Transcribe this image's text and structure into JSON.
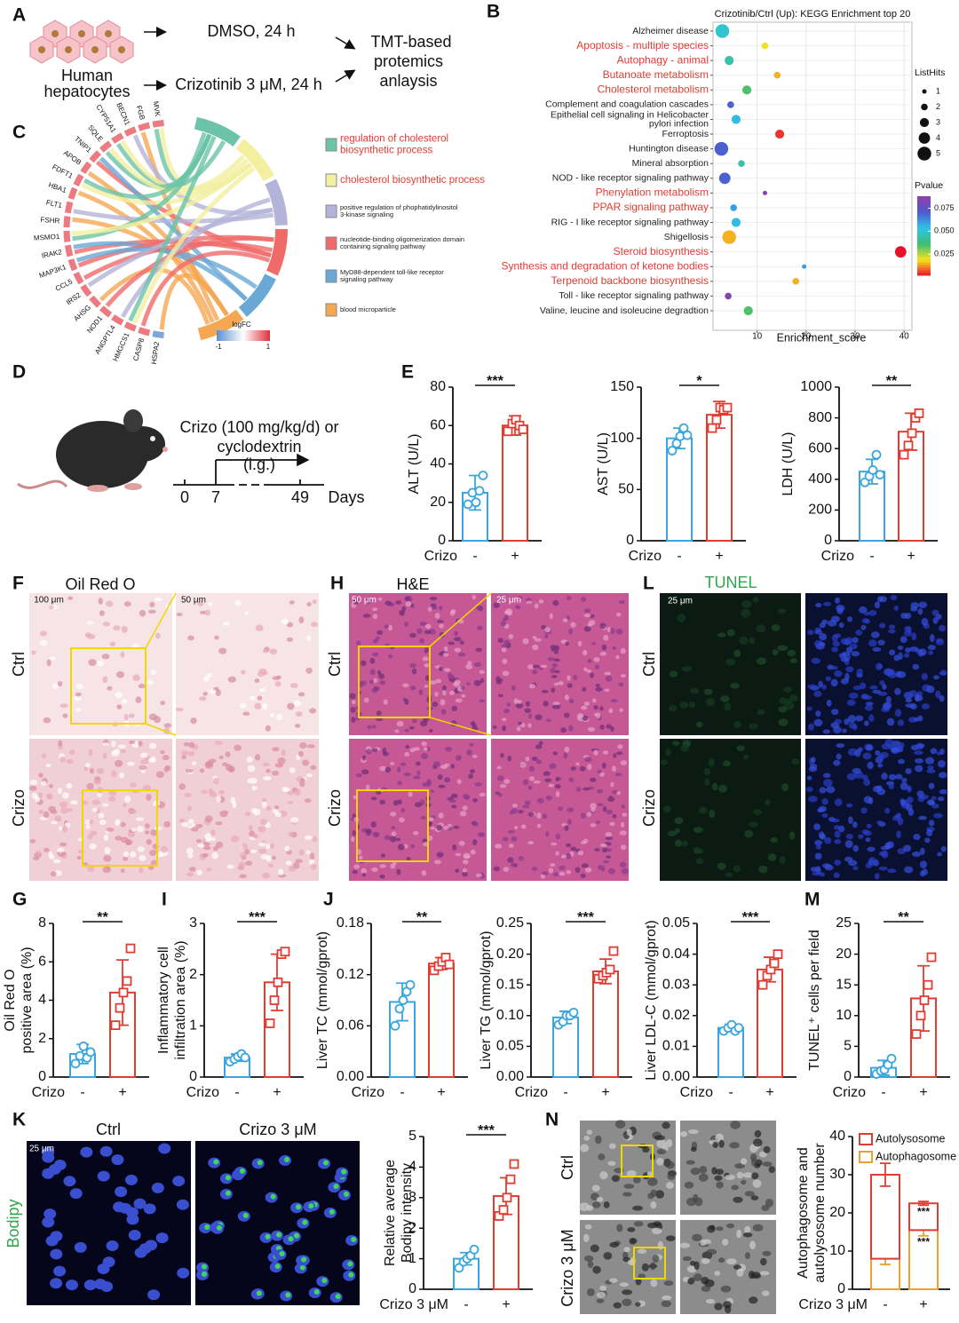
{
  "panel_letters": [
    "A",
    "B",
    "C",
    "D",
    "E",
    "F",
    "H",
    "L",
    "G",
    "I",
    "J",
    "M",
    "K",
    "N"
  ],
  "schematic_a": {
    "cell_label": [
      "Human",
      "hepatocytes"
    ],
    "arm1": "DMSO, 24 h",
    "arm2": "Crizotinib 3 μM, 24 h",
    "output": [
      "TMT-based",
      "protemics",
      "anlaysis"
    ]
  },
  "chord": {
    "genes": [
      "MVK",
      "FGB",
      "BECN1",
      "CYP51A1",
      "SQLE",
      "TNIP1",
      "APOB",
      "FDFT1",
      "HBA1",
      "FLT1",
      "FSHR",
      "MSMO1",
      "IRAK2",
      "MAP3K1",
      "CCL5",
      "IRS2",
      "AHSG",
      "NOD1",
      "ANGPTL4",
      "HMGCS1",
      "CASP8",
      "HSPA2"
    ],
    "terms": [
      [
        "regulation of cholesterol",
        "biosynthetic process"
      ],
      [
        "cholesterol biosynthetic process"
      ],
      [
        "positive regulation of phophatidylinositol",
        "3-kinase signaling"
      ],
      [
        "nucleotide-binding oligomerization domain",
        "containing signaling pathway"
      ],
      [
        "MyD88-dependent toll-like receptor",
        "signaling pathway"
      ],
      [
        "blood microparticle"
      ]
    ],
    "term_colors": [
      "#6cc3a8",
      "#f3ef9f",
      "#b4b4da",
      "#f06a6a",
      "#6aa8d6",
      "#f5a752"
    ],
    "term_label_colors": [
      "#e03c31",
      "#e03c31",
      "#222222",
      "#222222",
      "#222222",
      "#222222"
    ],
    "legend_title": "logFC",
    "scale_ticks": [
      -1,
      1
    ]
  },
  "schematic_d": {
    "treatment": [
      "Crizo (100 mg/kg/d) or",
      "cyclodextrin",
      "(i.g.)"
    ],
    "timeline_ticks": [
      0,
      7,
      49
    ],
    "timeline_unit": "Days"
  },
  "images": {
    "f": {
      "title": "Oil Red O",
      "scale_bars": [
        "100 μm",
        "50 μm"
      ],
      "rows": [
        "Ctrl",
        "Crizo"
      ]
    },
    "h": {
      "title": "H&E",
      "scale_bars": [
        "50 μm",
        "25 μm"
      ],
      "rows": [
        "Ctrl",
        "Crizo"
      ]
    },
    "l": {
      "title": "TUNEL",
      "scale_bars": [
        "25 μm"
      ],
      "rows": [
        "Ctrl",
        "Crizo"
      ]
    },
    "k": {
      "stain": "Bodipy",
      "columns": [
        "Ctrl",
        "Crizo 3 μM"
      ],
      "scale_bars": [
        "25 μm"
      ]
    },
    "n": {
      "rows": [
        "Ctrl",
        "Crizo 3 μM"
      ]
    }
  },
  "chart_data": [
    {
      "type": "scatter",
      "title": "Crizotinib/Ctrl (Up): KEGG Enrichment top 20",
      "x_label": "Enrichment_score",
      "categories": [
        "Alzheimer disease",
        "Apoptosis - multiple species",
        "Autophagy - animal",
        "Butanoate metabolism",
        "Cholesterol metabolism",
        "Complement and coagulation cascades",
        [
          "Epithelial cell signaling in Helicobacter",
          "pylori infection"
        ],
        "Ferroptosis",
        "Huntington disease",
        "Mineral absorption",
        "NOD - like receptor signaling pathway",
        "Phenylation metabolism",
        "PPAR signaling pathway",
        "RIG - I like receptor signaling pathway",
        "Shigellosis",
        "Steroid biosynthesis",
        "Synthesis and degradation of ketone bodies",
        "Terpenoid backbone biosynthesis",
        "Toll - like receptor signaling pathway",
        "Valine, leucine and isoleucine degradtion"
      ],
      "label_colors": [
        "#222222",
        "#e03c31",
        "#e03c31",
        "#e03c31",
        "#e03c31",
        "#222222",
        "#222222",
        "#222222",
        "#222222",
        "#222222",
        "#222222",
        "#e03c31",
        "#e03c31",
        "#222222",
        "#222222",
        "#e03c31",
        "#e03c31",
        "#e03c31",
        "#222222",
        "#222222"
      ],
      "values": [
        2.9,
        11.6,
        4.3,
        14.1,
        7.9,
        4.6,
        5.7,
        14.6,
        2.7,
        6.8,
        3.4,
        11.6,
        5.2,
        5.7,
        4.3,
        39.3,
        19.6,
        17.9,
        4.1,
        8.2
      ],
      "sizes": [
        5,
        2,
        3,
        2,
        3,
        2,
        3,
        3,
        5,
        2,
        4,
        1,
        2,
        3,
        5,
        4,
        1,
        2,
        2,
        3
      ],
      "pvalues": [
        0.05,
        0.02,
        0.045,
        0.015,
        0.035,
        0.07,
        0.055,
        0.005,
        0.07,
        0.045,
        0.07,
        0.085,
        0.06,
        0.055,
        0.015,
        0.002,
        0.06,
        0.015,
        0.085,
        0.035
      ],
      "xlim": [
        1,
        41.6
      ],
      "xticks": [
        10,
        20,
        30,
        40
      ],
      "grid": true,
      "size_legend_title": "ListHits",
      "size_legend": [
        1,
        2,
        3,
        4,
        5
      ],
      "color_legend_title": "Pvalue",
      "clim": [
        0.002,
        0.088
      ],
      "colorbar_ticks": [
        {
          "value": 0.075,
          "label": "0.075"
        },
        {
          "value": 0.05,
          "label": "0.050"
        },
        {
          "value": 0.025,
          "label": "0.025"
        }
      ],
      "colormap": [
        "#e8102a",
        "#f7e51c",
        "#3dbd72",
        "#2ec5e6",
        "#4d5bd0",
        "#8e3fa8"
      ]
    },
    {
      "type": "bar",
      "y_label": [
        "ALT (U/L)"
      ],
      "x_label": "Crizo",
      "categories": [
        "-",
        "+"
      ],
      "colors": [
        "#3aa6dd",
        "#e03c31"
      ],
      "values": [
        25,
        60
      ],
      "errors": [
        9,
        5
      ],
      "points": [
        [
          19,
          25,
          20,
          26,
          34
        ],
        [
          57,
          61,
          63,
          60,
          58
        ]
      ],
      "significance": "***",
      "ylim": [
        0,
        80
      ],
      "yticks": [
        0,
        20,
        40,
        60,
        80
      ]
    },
    {
      "type": "bar",
      "y_label": [
        "AST (U/L)"
      ],
      "x_label": "Crizo",
      "categories": [
        "-",
        "+"
      ],
      "colors": [
        "#3aa6dd",
        "#e03c31"
      ],
      "values": [
        100,
        123
      ],
      "errors": [
        10,
        13
      ],
      "points": [
        [
          88,
          95,
          102,
          110,
          103
        ],
        [
          110,
          118,
          130,
          128,
          130
        ]
      ],
      "significance": "*",
      "ylim": [
        0,
        150
      ],
      "yticks": [
        0,
        50,
        100,
        150
      ]
    },
    {
      "type": "bar",
      "y_label": [
        "LDH (U/L)"
      ],
      "x_label": "Crizo",
      "categories": [
        "-",
        "+"
      ],
      "colors": [
        "#3aa6dd",
        "#e03c31"
      ],
      "values": [
        450,
        710
      ],
      "errors": [
        80,
        120
      ],
      "points": [
        [
          380,
          420,
          460,
          560,
          430
        ],
        [
          560,
          620,
          700,
          800,
          830
        ]
      ],
      "significance": "**",
      "ylim": [
        0,
        1000
      ],
      "yticks": [
        0,
        200,
        400,
        600,
        800,
        1000
      ]
    },
    {
      "type": "bar",
      "y_label": [
        "Oil Red O",
        "positive area (%)"
      ],
      "x_label": "Crizo",
      "categories": [
        "-",
        "+"
      ],
      "colors": [
        "#3aa6dd",
        "#e03c31"
      ],
      "values": [
        1.2,
        4.4
      ],
      "errors": [
        0.5,
        1.7
      ],
      "points": [
        [
          0.7,
          1.1,
          1.6,
          1.0,
          1.3
        ],
        [
          2.7,
          3.6,
          4.4,
          5.0,
          6.7
        ]
      ],
      "significance": "**",
      "ylim": [
        0,
        8
      ],
      "yticks": [
        0,
        2,
        4,
        6,
        8
      ]
    },
    {
      "type": "bar",
      "y_label": [
        "Inflammatory cell",
        "infiltration area (%)"
      ],
      "x_label": "Crizo",
      "categories": [
        "-",
        "+"
      ],
      "colors": [
        "#3aa6dd",
        "#e03c31"
      ],
      "values": [
        0.38,
        1.85
      ],
      "errors": [
        0.07,
        0.55
      ],
      "points": [
        [
          0.3,
          0.35,
          0.4,
          0.45,
          0.38
        ],
        [
          1.05,
          1.5,
          1.85,
          2.4,
          2.45
        ]
      ],
      "significance": "***",
      "ylim": [
        0,
        3
      ],
      "yticks": [
        0,
        1,
        2,
        3
      ]
    },
    {
      "type": "bar",
      "y_label": [
        "Liver TC (mmol/gprot)"
      ],
      "x_label": "Crizo",
      "categories": [
        "-",
        "+"
      ],
      "colors": [
        "#3aa6dd",
        "#e03c31"
      ],
      "values": [
        0.088,
        0.133
      ],
      "errors": [
        0.022,
        0.007
      ],
      "points": [
        [
          0.06,
          0.08,
          0.09,
          0.1,
          0.108
        ],
        [
          0.125,
          0.13,
          0.135,
          0.14,
          0.132
        ]
      ],
      "significance": "**",
      "ylim": [
        0,
        0.18
      ],
      "yticks": [
        {
          "value": 0,
          "label": "0.00"
        },
        0.06,
        0.12,
        0.18
      ]
    },
    {
      "type": "bar",
      "y_label": [
        "Liver TG (mmol/gprot)"
      ],
      "x_label": "Crizo",
      "categories": [
        "-",
        "+"
      ],
      "colors": [
        "#3aa6dd",
        "#e03c31"
      ],
      "values": [
        0.097,
        0.172
      ],
      "errors": [
        0.01,
        0.02
      ],
      "points": [
        [
          0.085,
          0.09,
          0.1,
          0.1,
          0.105
        ],
        [
          0.16,
          0.165,
          0.17,
          0.175,
          0.205
        ]
      ],
      "significance": "***",
      "ylim": [
        0,
        0.25
      ],
      "yticks": [
        {
          "value": 0,
          "label": "0.00"
        },
        0.05,
        {
          "value": 0.1,
          "label": "0.10"
        },
        0.15,
        {
          "value": 0.2,
          "label": "0.20"
        },
        0.25
      ]
    },
    {
      "type": "bar",
      "y_label": [
        "Liver LDL-C (mmol/gprot)"
      ],
      "x_label": "Crizo",
      "categories": [
        "-",
        "+"
      ],
      "colors": [
        "#3aa6dd",
        "#e03c31"
      ],
      "values": [
        0.016,
        0.035
      ],
      "errors": [
        0.0012,
        0.004
      ],
      "points": [
        [
          0.015,
          0.016,
          0.017,
          0.015,
          0.016
        ],
        [
          0.03,
          0.033,
          0.035,
          0.037,
          0.04
        ]
      ],
      "significance": "***",
      "ylim": [
        0,
        0.05
      ],
      "yticks": [
        {
          "value": 0,
          "label": "0.00"
        },
        0.01,
        0.02,
        0.03,
        0.04,
        0.05
      ]
    },
    {
      "type": "bar",
      "y_label": [
        "TUNEL⁺ cells per field"
      ],
      "x_label": "Crizo",
      "categories": [
        "-",
        "+"
      ],
      "colors": [
        "#3aa6dd",
        "#e03c31"
      ],
      "values": [
        1.5,
        12.8
      ],
      "errors": [
        1.2,
        5.3
      ],
      "points": [
        [
          0.5,
          1,
          1.2,
          2,
          3
        ],
        [
          7,
          10,
          12.5,
          15,
          19.5
        ]
      ],
      "significance": "**",
      "ylim": [
        0,
        25
      ],
      "yticks": [
        0,
        5,
        10,
        15,
        20,
        25
      ]
    },
    {
      "type": "bar",
      "y_label": [
        "Relative average",
        "Bodipy intensity"
      ],
      "x_label": "Crizo 3 μM",
      "categories": [
        "-",
        "+"
      ],
      "colors": [
        "#3aa6dd",
        "#e03c31"
      ],
      "values": [
        1.0,
        3.05
      ],
      "errors": [
        0.2,
        0.6
      ],
      "points": [
        [
          0.7,
          0.9,
          1.0,
          1.1,
          1.3
        ],
        [
          2.4,
          2.6,
          3.0,
          3.6,
          4.1
        ]
      ],
      "significance": "***",
      "ylim": [
        0,
        5
      ],
      "yticks": [
        0,
        1,
        2,
        3,
        4,
        5
      ]
    },
    {
      "type": "stacked_bar",
      "y_label": [
        "Autophagosome and",
        "autolysosome number"
      ],
      "x_label": "Crizo 3 μM",
      "categories": [
        "-",
        "+"
      ],
      "series": [
        {
          "name": "Autophagosome",
          "color": "#f0a030",
          "values": [
            8,
            15.5
          ],
          "errors": [
            1.5,
            1.5
          ],
          "significance": "***"
        },
        {
          "name": "Autolysosome",
          "color": "#e03c31",
          "values": [
            22,
            7
          ],
          "errors": [
            3,
            0.5
          ],
          "significance": "***"
        }
      ],
      "ylim": [
        0,
        40
      ],
      "yticks": [
        0,
        10,
        20,
        30,
        40
      ]
    }
  ]
}
